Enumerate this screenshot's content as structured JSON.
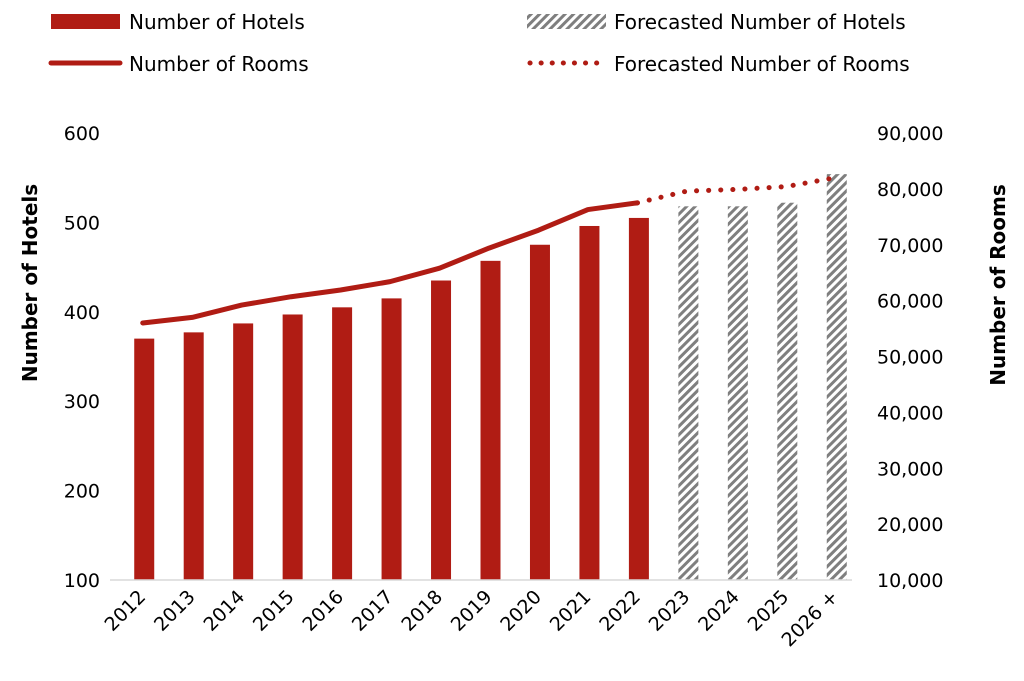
{
  "chart_data": {
    "type": "bar",
    "categories": [
      "2012",
      "2013",
      "2014",
      "2015",
      "2016",
      "2017",
      "2018",
      "2019",
      "2020",
      "2021",
      "2022",
      "2023",
      "2024",
      "2025",
      "2026 +"
    ],
    "series": [
      {
        "name": "Number of Hotels",
        "kind": "bar",
        "axis": "left",
        "values": [
          370,
          377,
          387,
          397,
          405,
          415,
          435,
          457,
          475,
          496,
          505,
          null,
          null,
          null,
          null
        ]
      },
      {
        "name": "Forecasted Number of Hotels",
        "kind": "bar-hatched",
        "axis": "left",
        "values": [
          null,
          null,
          null,
          null,
          null,
          null,
          null,
          null,
          null,
          null,
          null,
          518,
          518,
          522,
          554
        ]
      },
      {
        "name": "Number of Rooms",
        "kind": "line",
        "axis": "right",
        "values": [
          56000,
          57000,
          59200,
          60700,
          61900,
          63400,
          65800,
          69400,
          72600,
          76300,
          77500,
          null,
          null,
          null,
          null
        ]
      },
      {
        "name": "Forecasted Number of Rooms",
        "kind": "line-dotted",
        "axis": "right",
        "values": [
          null,
          null,
          null,
          null,
          null,
          null,
          null,
          null,
          null,
          null,
          77500,
          79600,
          79900,
          80400,
          82000
        ]
      }
    ],
    "ylabel": "Number of Hotels",
    "y2label": "Number of Rooms",
    "ylim": [
      100,
      600
    ],
    "y2lim": [
      10000,
      90000
    ],
    "yticks": [
      "100",
      "200",
      "300",
      "400",
      "500",
      "600"
    ],
    "y2ticks": [
      "10,000",
      "20,000",
      "30,000",
      "40,000",
      "50,000",
      "60,000",
      "70,000",
      "80,000",
      "90,000"
    ],
    "grid": false,
    "legend": "top",
    "colors": {
      "actual": "#b01c14",
      "forecast_hatch": "#7f7f7f",
      "axis": "#d9d9d9"
    }
  }
}
